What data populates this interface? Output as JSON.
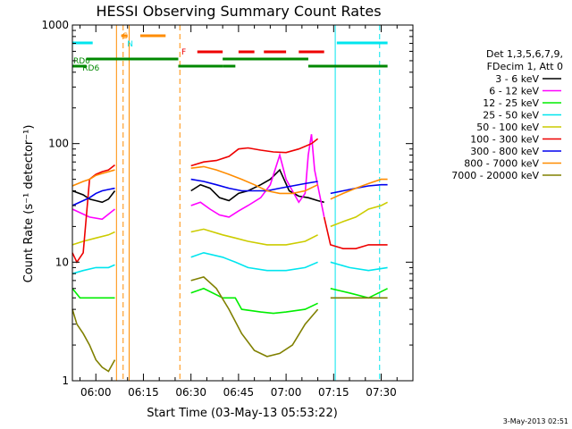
{
  "chart_data": {
    "type": "line",
    "title": "HESSI Observing Summary Count Rates",
    "xlabel": "Start Time (03-May-13 05:53:22)",
    "ylabel": "Count Rate (s⁻¹ detector⁻¹)",
    "yscale": "log",
    "ylim": [
      1,
      1000
    ],
    "xlim_min": [
      -7.4,
      100
    ],
    "x_ticks": [
      {
        "min": 0,
        "label": "06:00"
      },
      {
        "min": 15,
        "label": "06:15"
      },
      {
        "min": 30,
        "label": "06:30"
      },
      {
        "min": 45,
        "label": "06:45"
      },
      {
        "min": 60,
        "label": "07:00"
      },
      {
        "min": 75,
        "label": "07:15"
      },
      {
        "min": 90,
        "label": "07:30"
      }
    ],
    "y_ticks": [
      {
        "value": 1,
        "label": "1"
      },
      {
        "value": 10,
        "label": "10"
      },
      {
        "value": 100,
        "label": "100"
      },
      {
        "value": 1000,
        "label": "1000"
      }
    ],
    "legend_header": [
      "Det 1,3,5,6,7,9,",
      "FDecim 1, Att 0"
    ],
    "legend_position": "right",
    "flag_labels": {
      "S": "S",
      "N": "N",
      "F": "F",
      "RD0": "RD0",
      "RD6": "RD6"
    },
    "datestamp": "3-May-2013 02:51",
    "series": [
      {
        "name": "3 - 6 keV",
        "color": "#000000",
        "segments": [
          [
            [
              -7.4,
              40
            ],
            [
              -4,
              37
            ],
            [
              -2,
              34
            ],
            [
              0,
              33
            ],
            [
              2,
              32
            ],
            [
              4,
              34
            ],
            [
              6,
              40
            ]
          ],
          [
            [
              30,
              40
            ],
            [
              33,
              45
            ],
            [
              36,
              42
            ],
            [
              39,
              35
            ],
            [
              42,
              33
            ],
            [
              45,
              38
            ],
            [
              48,
              40
            ],
            [
              52,
              45
            ],
            [
              55,
              50
            ],
            [
              58,
              60
            ],
            [
              61,
              40
            ],
            [
              64,
              36
            ],
            [
              67,
              35
            ],
            [
              70,
              33
            ],
            [
              72,
              32
            ]
          ]
        ]
      },
      {
        "name": "6 - 12 keV",
        "color": "#ff00ff",
        "segments": [
          [
            [
              -7.4,
              28
            ],
            [
              -2,
              24
            ],
            [
              2,
              23
            ],
            [
              6,
              28
            ]
          ],
          [
            [
              30,
              30
            ],
            [
              33,
              32
            ],
            [
              36,
              28
            ],
            [
              39,
              25
            ],
            [
              42,
              24
            ],
            [
              45,
              27
            ],
            [
              48,
              30
            ],
            [
              52,
              35
            ],
            [
              55,
              45
            ],
            [
              58,
              80
            ],
            [
              60,
              50
            ],
            [
              62,
              40
            ],
            [
              64,
              32
            ],
            [
              66,
              38
            ],
            [
              67,
              80
            ],
            [
              68,
              120
            ],
            [
              69,
              60
            ],
            [
              72,
              24
            ]
          ]
        ]
      },
      {
        "name": "12 - 25 keV",
        "color": "#00ee00",
        "segments": [
          [
            [
              -7.4,
              6
            ],
            [
              -5,
              5
            ],
            [
              0,
              5
            ],
            [
              3,
              5
            ],
            [
              6,
              5
            ]
          ],
          [
            [
              30,
              5.5
            ],
            [
              34,
              6
            ],
            [
              40,
              5
            ],
            [
              44,
              5
            ],
            [
              46,
              4
            ],
            [
              52,
              3.8
            ],
            [
              56,
              3.7
            ],
            [
              60,
              3.8
            ],
            [
              66,
              4
            ],
            [
              70,
              4.5
            ]
          ],
          [
            [
              74,
              6
            ],
            [
              80,
              5.5
            ],
            [
              86,
              5
            ],
            [
              92,
              6
            ]
          ]
        ]
      },
      {
        "name": "25 - 50 keV",
        "color": "#00e5ee",
        "segments": [
          [
            [
              -7.4,
              8
            ],
            [
              -4,
              8.5
            ],
            [
              0,
              9
            ],
            [
              4,
              9
            ],
            [
              6,
              9.5
            ]
          ],
          [
            [
              30,
              11
            ],
            [
              34,
              12
            ],
            [
              40,
              11
            ],
            [
              44,
              10
            ],
            [
              48,
              9
            ],
            [
              54,
              8.5
            ],
            [
              60,
              8.5
            ],
            [
              66,
              9
            ],
            [
              70,
              10
            ]
          ],
          [
            [
              74,
              10
            ],
            [
              80,
              9
            ],
            [
              86,
              8.5
            ],
            [
              92,
              9
            ]
          ]
        ]
      },
      {
        "name": "50 - 100 keV",
        "color": "#cccc00",
        "segments": [
          [
            [
              -7.4,
              14
            ],
            [
              -4,
              15
            ],
            [
              0,
              16
            ],
            [
              4,
              17
            ],
            [
              6,
              18
            ]
          ],
          [
            [
              30,
              18
            ],
            [
              34,
              19
            ],
            [
              40,
              17
            ],
            [
              44,
              16
            ],
            [
              48,
              15
            ],
            [
              54,
              14
            ],
            [
              60,
              14
            ],
            [
              66,
              15
            ],
            [
              70,
              17
            ]
          ],
          [
            [
              74,
              20
            ],
            [
              78,
              22
            ],
            [
              82,
              24
            ],
            [
              86,
              28
            ],
            [
              90,
              30
            ],
            [
              92,
              32
            ]
          ]
        ]
      },
      {
        "name": "100 - 300 keV",
        "color": "#ee0000",
        "segments": [
          [
            [
              -7.4,
              12
            ],
            [
              -6,
              10
            ],
            [
              -4,
              12
            ],
            [
              -2,
              50
            ],
            [
              0,
              55
            ],
            [
              2,
              58
            ],
            [
              4,
              60
            ],
            [
              6,
              66
            ]
          ],
          [
            [
              30,
              65
            ],
            [
              34,
              70
            ],
            [
              38,
              72
            ],
            [
              42,
              78
            ],
            [
              45,
              90
            ],
            [
              48,
              92
            ],
            [
              52,
              88
            ],
            [
              56,
              85
            ],
            [
              60,
              84
            ],
            [
              64,
              90
            ],
            [
              68,
              100
            ],
            [
              70,
              110
            ]
          ],
          [
            [
              72,
              24
            ],
            [
              74,
              14
            ],
            [
              78,
              13
            ],
            [
              82,
              13
            ],
            [
              86,
              14
            ],
            [
              90,
              14
            ],
            [
              92,
              14
            ]
          ]
        ]
      },
      {
        "name": "300 - 800 keV",
        "color": "#0000ee",
        "segments": [
          [
            [
              -7.4,
              30
            ],
            [
              -4,
              33
            ],
            [
              -2,
              35
            ],
            [
              0,
              38
            ],
            [
              2,
              40
            ],
            [
              4,
              41
            ],
            [
              6,
              42
            ]
          ],
          [
            [
              30,
              50
            ],
            [
              34,
              48
            ],
            [
              38,
              45
            ],
            [
              42,
              42
            ],
            [
              46,
              40
            ],
            [
              50,
              40
            ],
            [
              54,
              40
            ],
            [
              58,
              42
            ],
            [
              62,
              44
            ],
            [
              66,
              46
            ],
            [
              70,
              48
            ]
          ],
          [
            [
              74,
              38
            ],
            [
              78,
              40
            ],
            [
              82,
              42
            ],
            [
              86,
              44
            ],
            [
              90,
              45
            ],
            [
              92,
              45
            ]
          ]
        ]
      },
      {
        "name": "800 - 7000 keV",
        "color": "#ff8c00",
        "segments": [
          [
            [
              -7.4,
              44
            ],
            [
              -4,
              48
            ],
            [
              -2,
              50
            ],
            [
              0,
              54
            ],
            [
              2,
              56
            ],
            [
              4,
              58
            ],
            [
              6,
              60
            ]
          ],
          [
            [
              30,
              62
            ],
            [
              34,
              64
            ],
            [
              38,
              60
            ],
            [
              42,
              55
            ],
            [
              46,
              50
            ],
            [
              50,
              45
            ],
            [
              54,
              40
            ],
            [
              58,
              38
            ],
            [
              62,
              38
            ],
            [
              66,
              40
            ],
            [
              70,
              45
            ]
          ],
          [
            [
              74,
              34
            ],
            [
              78,
              38
            ],
            [
              82,
              42
            ],
            [
              86,
              46
            ],
            [
              90,
              50
            ],
            [
              92,
              50
            ]
          ]
        ]
      },
      {
        "name": "7000 - 20000 keV",
        "color": "#808000",
        "segments": [
          [
            [
              -7.4,
              4
            ],
            [
              -6,
              3
            ],
            [
              -4,
              2.5
            ],
            [
              -2,
              2
            ],
            [
              0,
              1.5
            ],
            [
              2,
              1.3
            ],
            [
              4,
              1.2
            ],
            [
              6,
              1.5
            ]
          ],
          [
            [
              30,
              7
            ],
            [
              34,
              7.5
            ],
            [
              38,
              6
            ],
            [
              42,
              4
            ],
            [
              46,
              2.5
            ],
            [
              50,
              1.8
            ],
            [
              54,
              1.6
            ],
            [
              58,
              1.7
            ],
            [
              62,
              2
            ],
            [
              66,
              3
            ],
            [
              70,
              4
            ]
          ],
          [
            [
              74,
              5
            ],
            [
              78,
              5
            ],
            [
              82,
              5
            ],
            [
              86,
              5
            ],
            [
              90,
              5
            ],
            [
              92,
              5
            ]
          ]
        ]
      }
    ],
    "flag_bars": [
      {
        "flag": "S",
        "color": "#ff8c00",
        "spans": [
          [
            8,
            10
          ],
          [
            14,
            22
          ]
        ]
      },
      {
        "flag": "N",
        "color": "#00e5ee",
        "spans": [
          [
            -7.4,
            -1
          ],
          [
            76,
            92
          ]
        ]
      },
      {
        "flag": "F",
        "color": "#ee0000",
        "spans": [
          [
            32,
            40
          ],
          [
            45,
            50
          ],
          [
            53,
            60
          ],
          [
            64,
            72
          ]
        ]
      },
      {
        "flag": "RD0",
        "color": "#008800",
        "spans": [
          [
            -3,
            26
          ],
          [
            40,
            67
          ]
        ]
      },
      {
        "flag": "RD6",
        "color": "#008800",
        "spans": [
          [
            -7.4,
            -3
          ],
          [
            26,
            40
          ],
          [
            40,
            44
          ],
          [
            67,
            92
          ]
        ]
      }
    ],
    "vlines": [
      {
        "min": -7.4,
        "color": "#00e5ee",
        "style": "solid"
      },
      {
        "min": 6.5,
        "color": "#ff8c00",
        "style": "solid"
      },
      {
        "min": 8.6,
        "color": "#ff8c00",
        "style": "dashed"
      },
      {
        "min": 10.5,
        "color": "#ff8c00",
        "style": "solid"
      },
      {
        "min": 26.5,
        "color": "#ff8c00",
        "style": "dashed"
      },
      {
        "min": 75.5,
        "color": "#00e5ee",
        "style": "solid"
      },
      {
        "min": 89.5,
        "color": "#00e5ee",
        "style": "dashed"
      }
    ]
  }
}
